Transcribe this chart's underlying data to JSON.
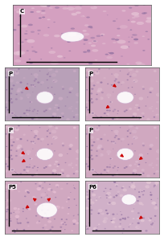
{
  "background_color": "#ffffff",
  "figure_bg": "#f0f0f0",
  "layout": {
    "top_panel": {
      "label": "C",
      "color_main": "#d4a0c0",
      "color_secondary": "#e8c8d8",
      "color_vessel": "#ffffff"
    },
    "row2": [
      {
        "label": "P",
        "color_main": "#b8a0b8",
        "color_secondary": "#d0b0c8",
        "color_vessel": "#ffffff",
        "arrow": [
          0.35,
          0.55
        ]
      },
      {
        "label": "P",
        "color_main": "#d0a8c0",
        "color_secondary": "#e0c0d0",
        "color_vessel": "#ffffff",
        "arrow": [
          0.45,
          0.6
        ],
        "arrow2": [
          0.25,
          0.2
        ]
      }
    ],
    "row3": [
      {
        "label": "P",
        "color_main": "#d0a8c0",
        "color_secondary": "#e8c8d8",
        "color_vessel": "#ffffff",
        "arrow": [
          0.3,
          0.4
        ],
        "arrow2": [
          0.2,
          0.25
        ]
      },
      {
        "label": "P",
        "color_main": "#d0a8c0",
        "color_secondary": "#e0c0d4",
        "color_vessel": "#ffffff",
        "arrow": [
          0.55,
          0.35
        ],
        "arrow2": [
          0.7,
          0.3
        ]
      }
    ],
    "row4": [
      {
        "label": "P5",
        "color_main": "#d0a8c0",
        "color_secondary": "#e8c0d4",
        "color_vessel": "#ffffff",
        "arrow": [
          0.25,
          0.45
        ],
        "arrow2": [
          0.35,
          0.7
        ],
        "arrow3": [
          0.65,
          0.7
        ]
      },
      {
        "label": "P6",
        "color_main": "#d0b0c8",
        "color_secondary": "#e8ccd8",
        "color_vessel": "#ffffff",
        "arrow": [
          0.7,
          0.25
        ]
      }
    ]
  },
  "scalebar_color": "#000000",
  "arrow_color": "#cc0000",
  "label_fontsize": 5,
  "border_color": "#555555"
}
